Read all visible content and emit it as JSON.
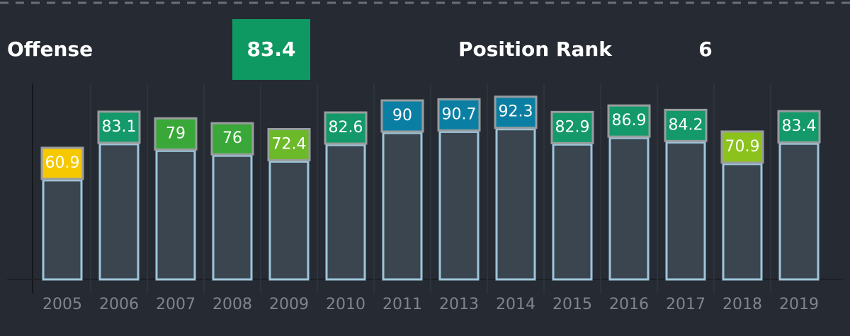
{
  "header": {
    "title": "Offense",
    "grade": 83.4,
    "grade_color": "#0e9862",
    "rank_label": "Position Rank",
    "rank": 6
  },
  "chart_data": {
    "type": "bar",
    "categories": [
      "2005",
      "2006",
      "2007",
      "2008",
      "2009",
      "2010",
      "2011",
      "2013",
      "2014",
      "2015",
      "2016",
      "2017",
      "2018",
      "2019"
    ],
    "values": [
      60.9,
      83.1,
      79,
      76,
      72.4,
      82.6,
      90,
      90.7,
      92.3,
      82.9,
      86.9,
      84.2,
      70.9,
      83.4
    ],
    "colors": [
      "#f5c800",
      "#13996a",
      "#3aa838",
      "#3aa838",
      "#6cb92a",
      "#13996a",
      "#0b7fa3",
      "#0b7fa3",
      "#0b7fa3",
      "#13996a",
      "#13996a",
      "#13996a",
      "#8cc21c",
      "#13996a"
    ],
    "ylim": [
      0,
      100
    ]
  }
}
